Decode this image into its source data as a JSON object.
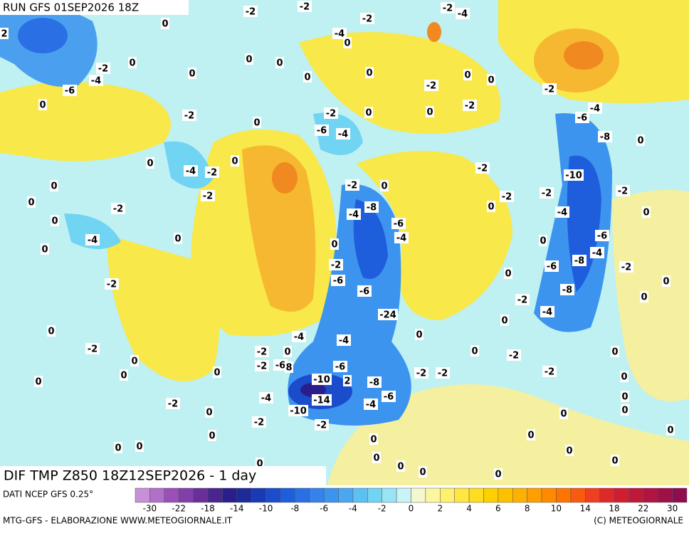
{
  "header": {
    "title": "RUN GFS 01SEP2026 18Z"
  },
  "map": {
    "caption": "DIF TMP Z850 18Z12SEP2026 - 1 day",
    "contour_labels": [
      -2,
      -2,
      0,
      -2,
      -4,
      0,
      -2,
      -4,
      -2,
      -4,
      -6,
      0,
      0,
      0,
      0,
      0,
      0,
      -2,
      0,
      0,
      -2,
      0,
      -2,
      0,
      -2,
      0,
      0,
      -2,
      -6,
      -4,
      -6,
      -4,
      -8,
      0,
      0,
      -4,
      -2,
      0,
      -2,
      -10,
      0,
      -2,
      -2,
      0,
      -2,
      -2,
      -2,
      0,
      -2,
      0,
      -8,
      -4,
      -4,
      0,
      0,
      -6,
      -4,
      0,
      -4,
      -6,
      0,
      0,
      0,
      -4,
      -2,
      -6,
      -8,
      -2,
      -6,
      0,
      0,
      -2,
      -6,
      -8,
      -2,
      0,
      -24,
      -4,
      0,
      0,
      -4,
      -4,
      0,
      -2,
      -2,
      0,
      0,
      -2,
      0,
      0,
      -2,
      -6,
      8,
      -6,
      0,
      -2,
      -2,
      -2,
      0,
      -10,
      2,
      -8,
      0,
      0,
      -4,
      -14,
      -6,
      -4,
      0,
      -10,
      -2,
      0,
      0,
      -2,
      -2,
      0,
      0,
      0,
      0,
      0,
      0,
      0,
      0,
      0,
      0,
      0,
      0,
      0,
      0,
      2
    ]
  },
  "footer": {
    "source": "DATI NCEP GFS 0.25°",
    "credit": "MTG-GFS - ELABORAZIONE WWW.METEOGIORNALE.IT",
    "copyright": "(C) METEOGIORNALE"
  },
  "legend": {
    "colors": [
      "#c890d8",
      "#b070c8",
      "#9a50b8",
      "#8040a8",
      "#6a2e9a",
      "#4a2590",
      "#2a1e8c",
      "#1c2a9a",
      "#1a3ab4",
      "#1a4ccc",
      "#1e5edc",
      "#2a70e4",
      "#3482ea",
      "#3c94ee",
      "#4aa8f0",
      "#5cc0f2",
      "#70d4f2",
      "#98e4f4",
      "#c8f4f6",
      "#f4f8d0",
      "#fdf6a0",
      "#fff070",
      "#ffe640",
      "#ffdc20",
      "#ffd000",
      "#ffc000",
      "#ffb000",
      "#ff9e00",
      "#ff8a00",
      "#ff7400",
      "#f85a10",
      "#ee4020",
      "#e02828",
      "#d01e30",
      "#c01838",
      "#b01440",
      "#a01048",
      "#900c50"
    ],
    "labels": [
      -30,
      -22,
      -18,
      -14,
      -10,
      -8,
      -6,
      -4,
      -2,
      0,
      2,
      4,
      6,
      8,
      10,
      14,
      18,
      22,
      30
    ]
  }
}
